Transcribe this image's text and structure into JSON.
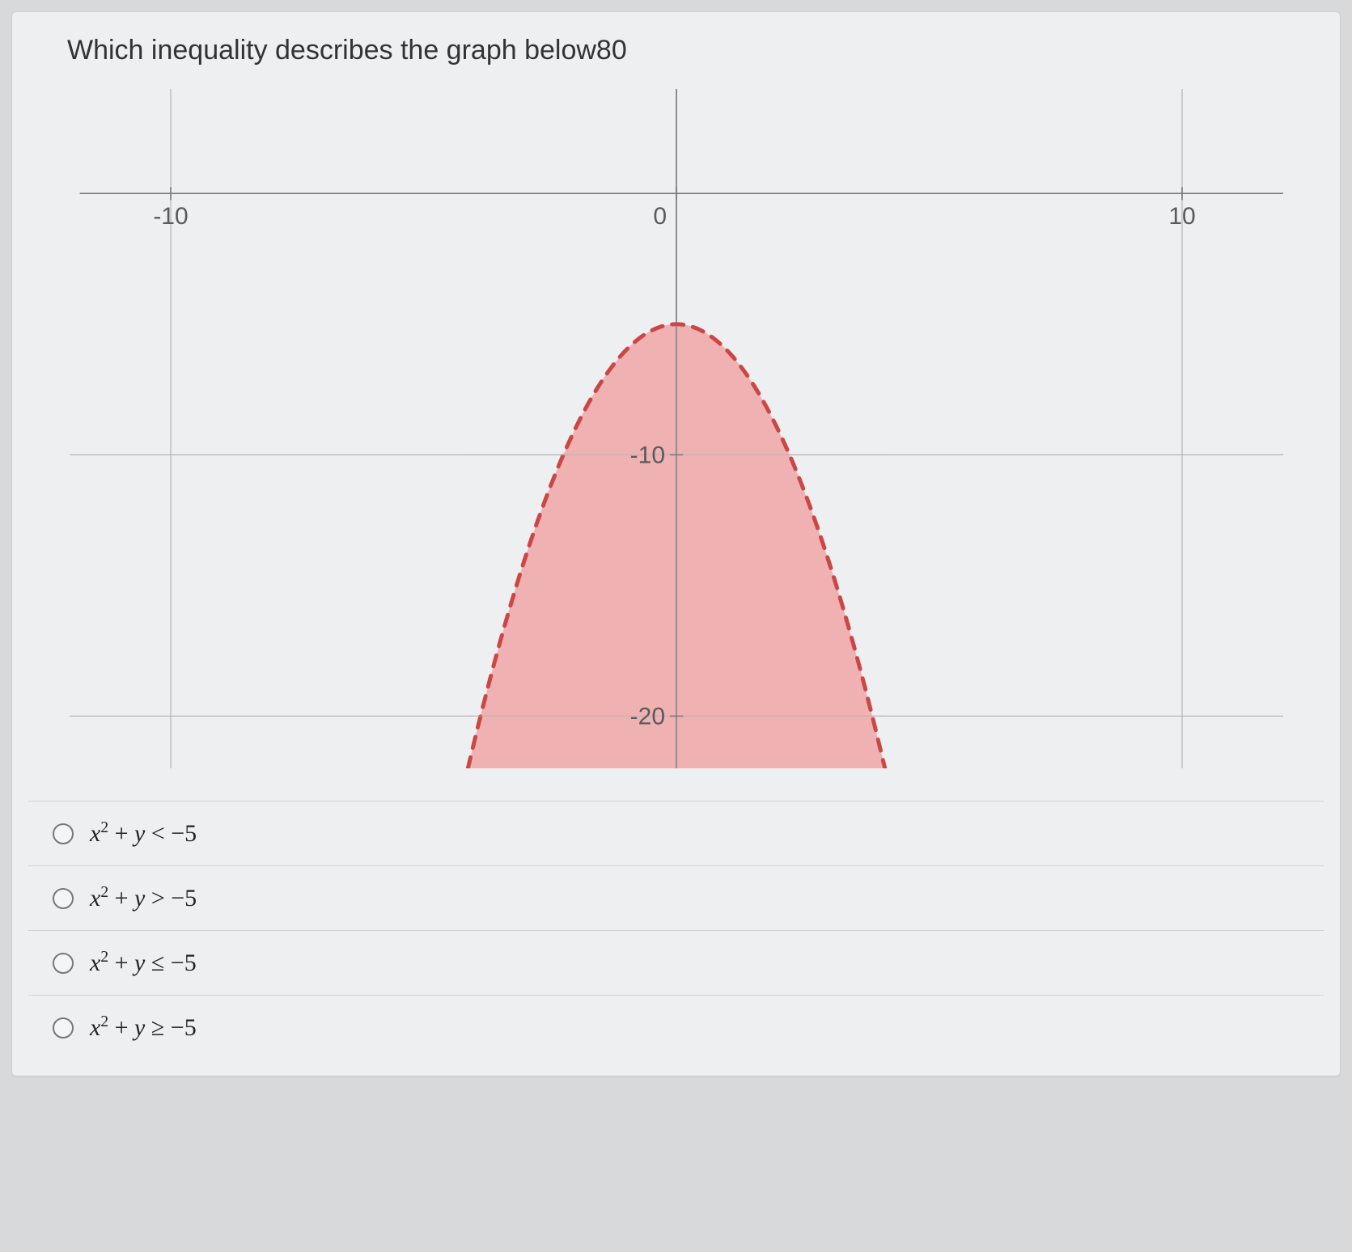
{
  "question": {
    "text": "Which inequality describes the graph below80"
  },
  "graph": {
    "background": "#eeeff0",
    "grid_color": "#b8b8b8",
    "axis_color": "#7a7a7a",
    "label_color": "#5a5a5a",
    "label_fontsize": 30,
    "x_range": [
      -12,
      12
    ],
    "y_range": [
      -22,
      4
    ],
    "x_ticks": [
      {
        "x": -10,
        "label": "-10"
      },
      {
        "x": 0,
        "label": "0"
      },
      {
        "x": 10,
        "label": "10"
      }
    ],
    "y_ticks": [
      {
        "y": -10,
        "label": "-10"
      },
      {
        "y": -20,
        "label": "-20"
      }
    ],
    "parabola": {
      "vertex_x": 0,
      "vertex_y": -5,
      "a": -1,
      "fill_color": "#f0a3a3",
      "fill_opacity": 0.82,
      "stroke_color": "#cc4646",
      "stroke_width": 5,
      "dash": "14 12"
    }
  },
  "options": [
    {
      "expr_html": "<span class='it'>x</span><sup>2</sup> + <span class='it'>y</span> &lt; &minus;5"
    },
    {
      "expr_html": "<span class='it'>x</span><sup>2</sup> + <span class='it'>y</span> &gt; &minus;5"
    },
    {
      "expr_html": "<span class='it'>x</span><sup>2</sup> + <span class='it'>y</span> &le; &minus;5"
    },
    {
      "expr_html": "<span class='it'>x</span><sup>2</sup> + <span class='it'>y</span> &ge; &minus;5"
    }
  ]
}
